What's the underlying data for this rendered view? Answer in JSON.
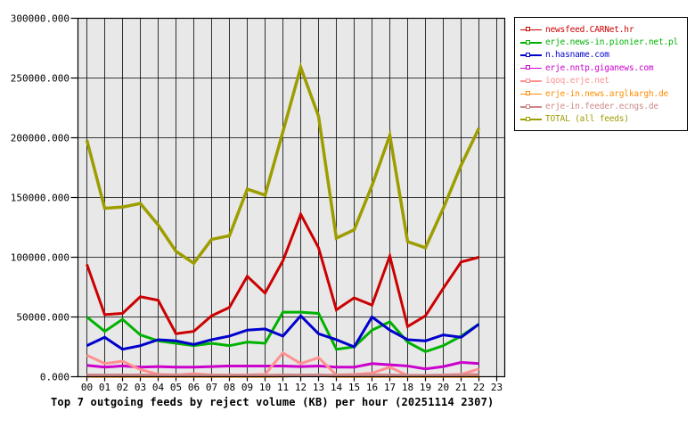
{
  "page": {
    "background": "#ffffff"
  },
  "chart_data": {
    "type": "line",
    "title": "Top 7 outgoing feeds by reject volume (KB) per hour (20251114 2307)",
    "xlabel": "",
    "ylabel": "",
    "x_tick_labels": [
      "00",
      "01",
      "02",
      "03",
      "04",
      "05",
      "06",
      "07",
      "08",
      "09",
      "10",
      "11",
      "12",
      "13",
      "14",
      "15",
      "16",
      "17",
      "18",
      "19",
      "20",
      "21",
      "22",
      "23"
    ],
    "y_tick_labels": [
      "0.000",
      "50000.000",
      "100000.000",
      "150000.000",
      "200000.000",
      "250000.000",
      "300000.000"
    ],
    "ylim": [
      0,
      300000
    ],
    "y_tick_step": 50000,
    "grid": true,
    "plot_background": "#e8e8e8",
    "grid_color": "#000000",
    "axis_color": "#000000",
    "legend_position": "top-right",
    "data_hours_covered": [
      "00",
      "01",
      "02",
      "03",
      "04",
      "05",
      "06",
      "07",
      "08",
      "09",
      "10",
      "11",
      "12",
      "13",
      "14",
      "15",
      "16",
      "17",
      "18",
      "19",
      "20",
      "21",
      "22"
    ],
    "series": [
      {
        "name": "newsfeed.CARNet.hr",
        "color": "#cc0000",
        "values": [
          94000,
          52000,
          53000,
          67000,
          64000,
          36000,
          38000,
          51000,
          58000,
          84000,
          70000,
          97000,
          136000,
          108000,
          56000,
          66000,
          60000,
          101000,
          42000,
          51000,
          74000,
          96000,
          100000
        ]
      },
      {
        "name": "erje.news-in.pionier.net.pl",
        "color": "#00b200",
        "values": [
          50000,
          38000,
          48000,
          35000,
          30000,
          28000,
          26000,
          28000,
          26000,
          29000,
          28000,
          54000,
          54000,
          53000,
          23000,
          25000,
          39000,
          46000,
          29000,
          21000,
          26000,
          34000,
          44000
        ]
      },
      {
        "name": "n.hasname.com",
        "color": "#0000cc",
        "values": [
          26000,
          33000,
          23000,
          26000,
          31000,
          30000,
          27000,
          31000,
          34000,
          39000,
          40000,
          34000,
          51000,
          36000,
          31000,
          25000,
          50000,
          39000,
          31000,
          30000,
          35000,
          33000,
          44000
        ]
      },
      {
        "name": "erje.nntp.giganews.com",
        "color": "#cc00cc",
        "values": [
          9500,
          8000,
          9000,
          8000,
          8500,
          8000,
          8000,
          8500,
          9000,
          9000,
          9000,
          9000,
          8500,
          9000,
          8000,
          8000,
          11000,
          10000,
          9000,
          6500,
          8500,
          12000,
          11000
        ]
      },
      {
        "name": "iqoq.erje.net",
        "color": "#ff9191",
        "values": [
          18000,
          11000,
          13000,
          6000,
          2000,
          1500,
          2500,
          1500,
          1500,
          1500,
          2000,
          20000,
          11000,
          16000,
          1500,
          2000,
          3000,
          8000,
          1000,
          1000,
          1500,
          2000,
          6500
        ]
      },
      {
        "name": "erje-in.news.arglkargh.de",
        "color": "#ff8c00",
        "values": [
          300,
          300,
          300,
          300,
          300,
          300,
          300,
          300,
          300,
          300,
          300,
          500,
          1000,
          1000,
          300,
          300,
          300,
          300,
          300,
          300,
          300,
          300,
          300
        ]
      },
      {
        "name": "erje-in.feeder.ecngs.de",
        "color": "#cc8888",
        "values": [
          1500,
          1500,
          1500,
          1500,
          1200,
          1200,
          1200,
          1200,
          1200,
          1200,
          1200,
          1500,
          1500,
          1500,
          1200,
          1200,
          1500,
          1500,
          1200,
          1200,
          1200,
          1500,
          2000
        ]
      },
      {
        "name": "TOTAL (all feeds)",
        "color": "#9d9d00",
        "values": [
          198000,
          141000,
          142000,
          145000,
          127000,
          105000,
          95000,
          115000,
          118000,
          157000,
          152000,
          205000,
          259000,
          218000,
          116000,
          123000,
          160000,
          202000,
          113000,
          108000,
          141000,
          177000,
          208000
        ]
      }
    ]
  }
}
